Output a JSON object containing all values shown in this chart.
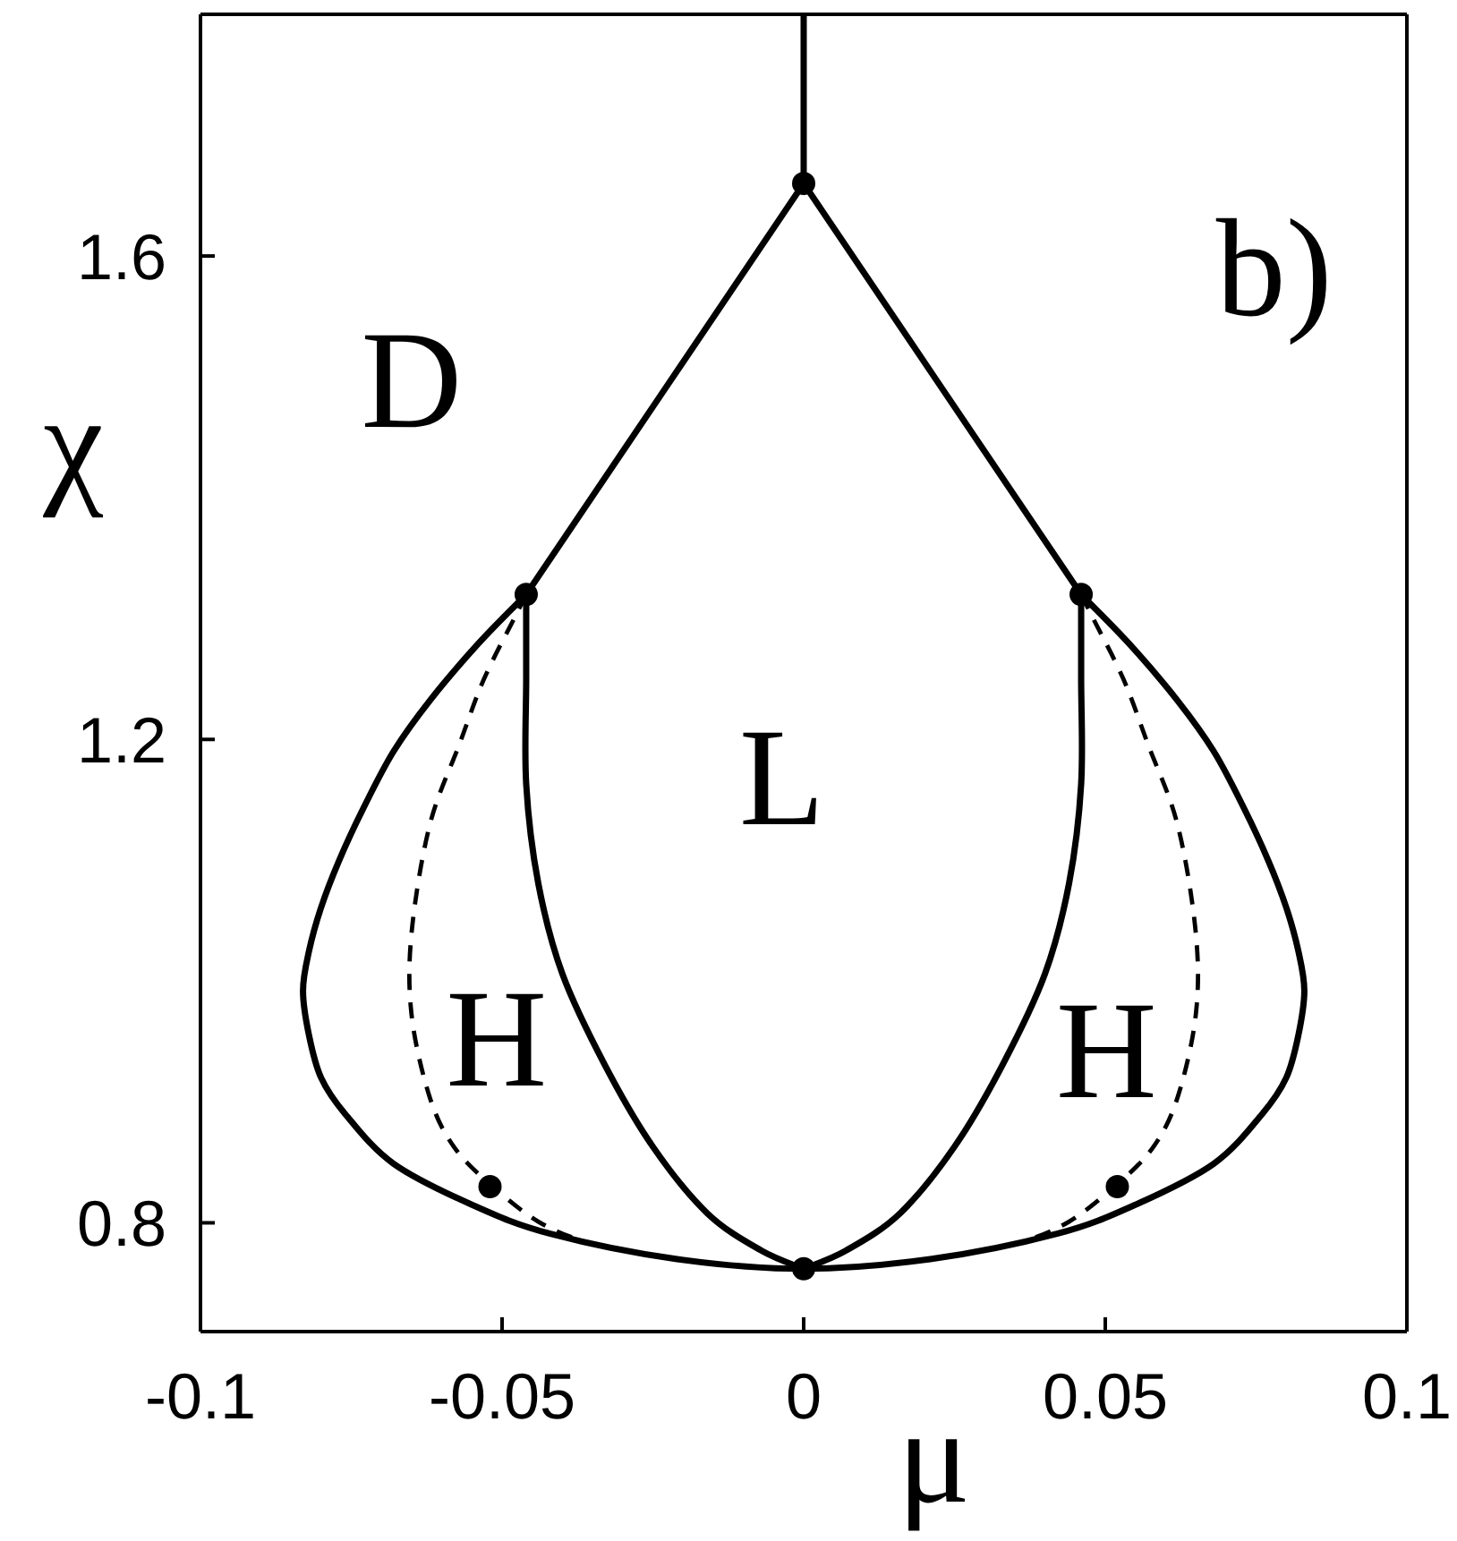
{
  "chart_data": {
    "type": "line",
    "xlabel": "μ",
    "ylabel": "χ",
    "xlim": [
      -0.1,
      0.1
    ],
    "xticks": [
      -0.1,
      -0.05,
      0,
      0.05,
      0.1
    ],
    "ylim": [
      0.71,
      1.8
    ],
    "yticks": [
      0.8,
      1.2,
      1.6
    ],
    "line_style": "solid",
    "annotations": [
      "D",
      "L",
      "H",
      "H",
      "b)"
    ],
    "series": [
      {
        "color": "#000000",
        "x": [
          0,
          0
        ],
        "values": [
          1.8,
          1.66
        ]
      },
      {
        "color": "#000000",
        "x": [
          0,
          -0.046
        ],
        "values": [
          1.66,
          1.32
        ]
      },
      {
        "color": "#000000",
        "x": [
          0,
          0.046
        ],
        "values": [
          1.66,
          1.32
        ]
      },
      {
        "color": "#000000",
        "x": [
          -0.046,
          -0.054,
          -0.062,
          -0.068,
          -0.073,
          -0.077,
          -0.08,
          -0.082,
          -0.083,
          -0.082,
          -0.08,
          -0.076,
          -0.068,
          -0.055,
          -0.042,
          -0.021,
          0,
          0.021,
          0.042,
          0.055,
          0.068,
          0.076,
          0.08,
          0.082,
          0.083,
          0.082,
          0.08,
          0.077,
          0.073,
          0.068,
          0.062,
          0.054,
          0.046
        ],
        "values": [
          1.32,
          1.279,
          1.232,
          1.19,
          1.143,
          1.1,
          1.061,
          1.025,
          0.992,
          0.955,
          0.92,
          0.89,
          0.849,
          0.815,
          0.791,
          0.77,
          0.762,
          0.77,
          0.791,
          0.815,
          0.849,
          0.89,
          0.92,
          0.955,
          0.992,
          1.025,
          1.061,
          1.1,
          1.143,
          1.19,
          1.232,
          1.279,
          1.32
        ]
      },
      {
        "color": "#000000",
        "x": [
          -0.046,
          -0.046,
          -0.046,
          -0.044,
          -0.04,
          -0.033,
          -0.025,
          -0.016,
          -0.007,
          0
        ],
        "values": [
          1.32,
          1.25,
          1.163,
          1.081,
          1.006,
          0.931,
          0.863,
          0.808,
          0.777,
          0.762
        ]
      },
      {
        "color": "#000000",
        "x": [
          0.046,
          0.046,
          0.046,
          0.044,
          0.04,
          0.033,
          0.025,
          0.016,
          0.007,
          0
        ],
        "values": [
          1.32,
          1.25,
          1.163,
          1.081,
          1.006,
          0.931,
          0.863,
          0.808,
          0.777,
          0.762
        ]
      },
      {
        "color": "#000000",
        "line_style": "dashed",
        "x": [
          -0.046,
          -0.048,
          -0.053,
          -0.057,
          -0.062,
          -0.065,
          -0.065,
          -0.062,
          -0.058,
          -0.052,
          -0.044,
          -0.036,
          -0.028
        ],
        "values": [
          1.32,
          1.3,
          1.25,
          1.197,
          1.129,
          1.04,
          0.972,
          0.904,
          0.863,
          0.832,
          0.801,
          0.784,
          0.776
        ]
      },
      {
        "color": "#000000",
        "line_style": "dashed",
        "x": [
          0.046,
          0.048,
          0.053,
          0.057,
          0.062,
          0.065,
          0.065,
          0.062,
          0.058,
          0.052,
          0.044,
          0.036,
          0.028
        ],
        "values": [
          1.32,
          1.3,
          1.25,
          1.197,
          1.129,
          1.04,
          0.972,
          0.904,
          0.863,
          0.832,
          0.801,
          0.784,
          0.776
        ]
      },
      {
        "type": "scatter",
        "marker": "circle",
        "color": "#000000",
        "x": [
          0,
          -0.046,
          0.046,
          0,
          -0.052,
          0.052
        ],
        "values": [
          1.66,
          1.32,
          1.32,
          0.762,
          0.83,
          0.83
        ]
      }
    ]
  }
}
